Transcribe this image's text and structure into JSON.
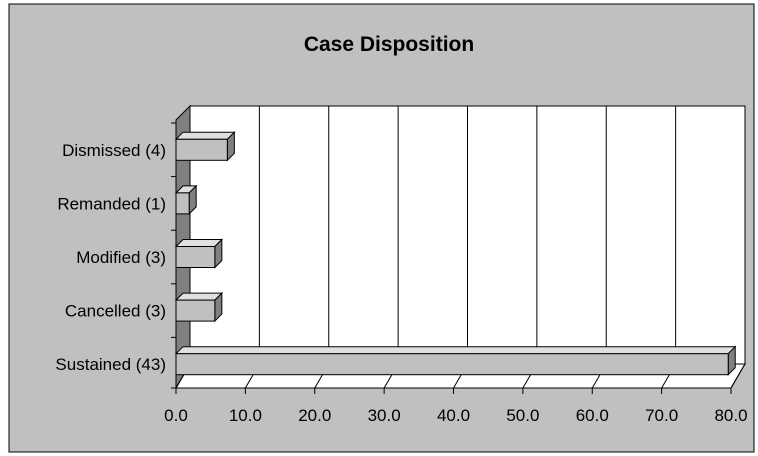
{
  "chart_data": {
    "type": "bar",
    "orientation": "horizontal",
    "title": "Case Disposition",
    "categories": [
      "Dismissed (4)",
      "Remanded (1)",
      "Modified (3)",
      "Cancelled (3)",
      "Sustained (43)"
    ],
    "values": [
      7.4,
      1.9,
      5.6,
      5.6,
      79.6
    ],
    "xlim": [
      0,
      80
    ],
    "xticks": [
      "0.0",
      "10.0",
      "20.0",
      "30.0",
      "40.0",
      "50.0",
      "60.0",
      "70.0",
      "80.0"
    ],
    "grid": true,
    "legend": "none",
    "style": "3d"
  },
  "colors": {
    "background": "#c0c0c0",
    "plot_background": "#ffffff",
    "bar_front": "#c0c0c0",
    "bar_top": "#e0e0e0",
    "bar_side": "#808080",
    "wall": "#808080",
    "floor": "#ffffff",
    "outline": "#000000"
  }
}
